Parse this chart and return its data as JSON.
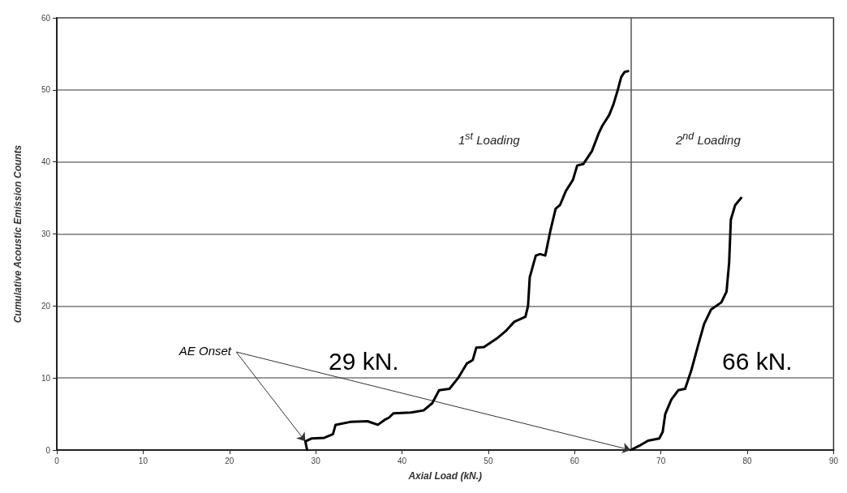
{
  "chart_data": {
    "type": "line",
    "xlabel": "Axial Load (kN.)",
    "ylabel": "Cumulative Acoustic Emission Counts",
    "xlim": [
      0,
      90
    ],
    "xticks": [
      0,
      10,
      20,
      30,
      40,
      50,
      60,
      70,
      80,
      90
    ],
    "ylim": [
      0,
      60
    ],
    "yticks": [
      0,
      10,
      20,
      30,
      40,
      50,
      60
    ],
    "grid": "y",
    "marker": "none",
    "line_style": "solid",
    "series": [
      {
        "color": "#000000",
        "x": [
          29,
          28.8,
          29.5,
          31,
          32,
          32.3,
          34,
          36,
          37.2,
          38,
          38.5,
          39,
          41,
          42.5,
          43.5,
          44.3,
          45.5,
          46.5,
          47.5,
          48.2,
          48.6,
          49.5,
          51,
          52,
          53,
          54.3,
          54.6,
          54.8,
          55.5,
          56,
          56.6,
          57.2,
          57.8,
          58.3,
          59,
          59.8,
          60.3,
          61,
          62,
          62.8,
          63.2,
          64,
          64.5,
          65,
          65.4,
          65.8,
          66.2
        ],
        "values": [
          0,
          1.2,
          1.6,
          1.7,
          2.2,
          3.5,
          3.9,
          4,
          3.5,
          4.2,
          4.5,
          5.1,
          5.2,
          5.5,
          6.5,
          8.3,
          8.5,
          10,
          12,
          12.5,
          14.2,
          14.3,
          15.5,
          16.5,
          17.8,
          18.5,
          20,
          24,
          27,
          27.2,
          27,
          30.5,
          33.5,
          34,
          36,
          37.5,
          39.5,
          39.7,
          41.5,
          44,
          45,
          46.5,
          48,
          50,
          51.8,
          52.5,
          52.6
        ]
      },
      {
        "color": "#000000",
        "x": [
          66.5,
          67.5,
          68.5,
          69.8,
          70.2,
          70.5,
          71.2,
          72,
          72.8,
          73.5,
          74.3,
          75,
          75.8,
          77,
          77.6,
          77.9,
          78.1,
          78.6,
          79.3
        ],
        "values": [
          0,
          0.6,
          1.3,
          1.6,
          2.5,
          5,
          7,
          8.3,
          8.5,
          11,
          14.5,
          17.5,
          19.5,
          20.5,
          22,
          26,
          32,
          34,
          35
        ]
      }
    ],
    "ref_lines": [
      {
        "axis": "x",
        "value": 66.5,
        "color": "#555555",
        "line_style": "solid"
      }
    ],
    "annotations": [
      {
        "text": "AE Onset",
        "x": 28.8,
        "y": 1.2
      },
      "29 kN.",
      "66 kN.",
      "1$^{st}$ Loading",
      "2$^{nd}$ Loading"
    ]
  }
}
